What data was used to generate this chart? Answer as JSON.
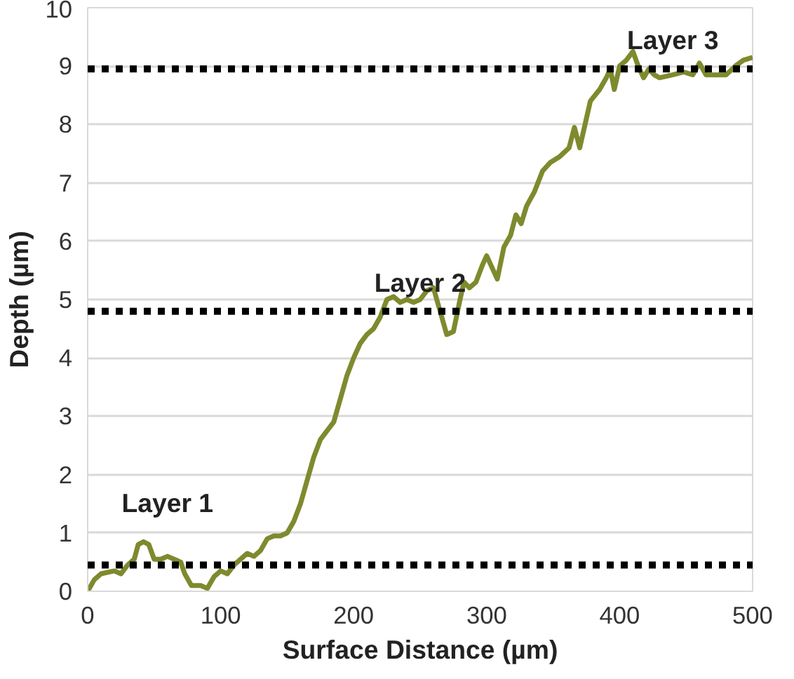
{
  "chart_data": {
    "type": "line",
    "xlabel": "Surface Distance (µm)",
    "ylabel": "Depth (µm)",
    "xlim": [
      0,
      500
    ],
    "ylim": [
      0,
      10
    ],
    "xticks": [
      0,
      100,
      200,
      300,
      400,
      500
    ],
    "yticks": [
      0,
      1,
      2,
      3,
      4,
      5,
      6,
      7,
      8,
      9,
      10
    ],
    "grid": "y",
    "marker": "none",
    "line_style": "solid",
    "series": [
      {
        "color": "#7f8a2e",
        "x": [
          0,
          5,
          10,
          20,
          25,
          30,
          35,
          38,
          42,
          46,
          50,
          55,
          60,
          65,
          70,
          73,
          78,
          85,
          90,
          95,
          100,
          105,
          110,
          115,
          120,
          125,
          130,
          135,
          140,
          145,
          150,
          155,
          160,
          165,
          170,
          175,
          180,
          185,
          190,
          195,
          200,
          205,
          210,
          215,
          220,
          225,
          230,
          235,
          240,
          245,
          250,
          255,
          260,
          265,
          270,
          275,
          280,
          283,
          287,
          292,
          297,
          300,
          305,
          308,
          313,
          318,
          322,
          326,
          330,
          336,
          342,
          348,
          355,
          362,
          366,
          370,
          374,
          378,
          385,
          390,
          393,
          396,
          400,
          405,
          410,
          414,
          418,
          422,
          426,
          430,
          440,
          448,
          455,
          460,
          465,
          475,
          480,
          487,
          493,
          500
        ],
        "values": [
          0.0,
          0.2,
          0.3,
          0.35,
          0.3,
          0.45,
          0.55,
          0.8,
          0.85,
          0.8,
          0.55,
          0.55,
          0.6,
          0.55,
          0.5,
          0.3,
          0.1,
          0.1,
          0.05,
          0.25,
          0.35,
          0.3,
          0.45,
          0.55,
          0.65,
          0.6,
          0.7,
          0.9,
          0.95,
          0.95,
          1.0,
          1.2,
          1.5,
          1.9,
          2.3,
          2.6,
          2.75,
          2.9,
          3.3,
          3.7,
          4.0,
          4.25,
          4.4,
          4.5,
          4.7,
          5.0,
          5.05,
          4.95,
          5.0,
          4.95,
          5.0,
          5.15,
          5.2,
          4.8,
          4.4,
          4.45,
          5.0,
          5.3,
          5.2,
          5.3,
          5.6,
          5.75,
          5.5,
          5.35,
          5.9,
          6.1,
          6.45,
          6.3,
          6.6,
          6.85,
          7.2,
          7.35,
          7.45,
          7.6,
          7.95,
          7.6,
          8.0,
          8.4,
          8.6,
          8.8,
          8.95,
          8.6,
          9.0,
          9.1,
          9.25,
          9.0,
          8.8,
          8.95,
          8.85,
          8.8,
          8.85,
          8.9,
          8.85,
          9.05,
          8.85,
          8.85,
          8.85,
          9.0,
          9.1,
          9.15
        ]
      }
    ],
    "ref_lines": [
      {
        "axis": "y",
        "value": 0.45,
        "color": "#000000",
        "line_style": "dotted",
        "label": "Layer 1"
      },
      {
        "axis": "y",
        "value": 4.8,
        "color": "#000000",
        "line_style": "dotted",
        "label": "Layer 2"
      },
      {
        "axis": "y",
        "value": 8.95,
        "color": "#000000",
        "line_style": "dotted",
        "label": "Layer 3"
      }
    ]
  }
}
